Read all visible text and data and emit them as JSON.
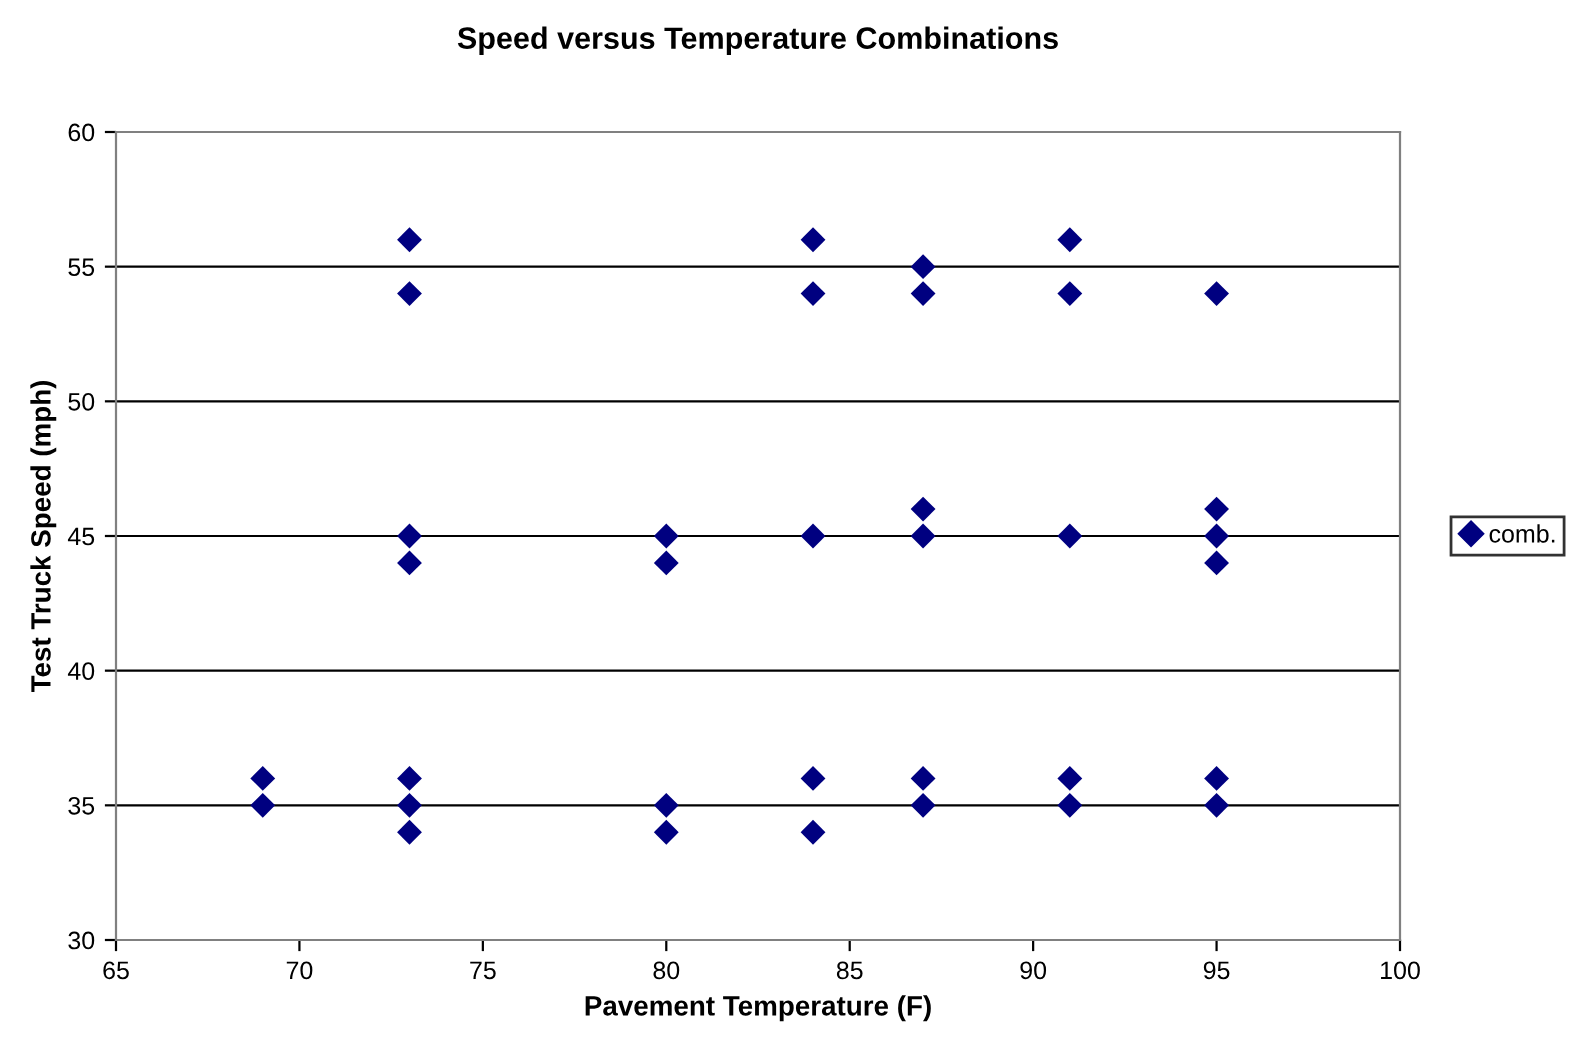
{
  "chart_data": {
    "type": "scatter",
    "title": "Speed versus Temperature Combinations",
    "xlabel": "Pavement Temperature (F)",
    "ylabel": "Test Truck Speed (mph)",
    "series": [
      {
        "name": "comb.",
        "color": "#000080",
        "x": [
          69,
          69,
          73,
          73,
          73,
          73,
          73,
          73,
          73,
          80,
          80,
          80,
          80,
          84,
          84,
          84,
          84,
          84,
          87,
          87,
          87,
          87,
          87,
          87,
          91,
          91,
          91,
          91,
          91,
          95,
          95,
          95,
          95,
          95,
          95
        ],
        "values": [
          36,
          35,
          56,
          54,
          45,
          44,
          36,
          35,
          34,
          45,
          44,
          35,
          34,
          56,
          54,
          45,
          36,
          34,
          55,
          54,
          46,
          45,
          36,
          35,
          56,
          54,
          45,
          36,
          35,
          54,
          46,
          45,
          44,
          36,
          35
        ]
      }
    ],
    "xlim": [
      65,
      100
    ],
    "xticks": [
      65,
      70,
      75,
      80,
      85,
      90,
      95,
      100
    ],
    "ylim": [
      30,
      60
    ],
    "yticks": [
      30,
      35,
      40,
      45,
      50,
      55,
      60
    ],
    "grid": "y",
    "legend": "right",
    "marker": "diamond"
  }
}
